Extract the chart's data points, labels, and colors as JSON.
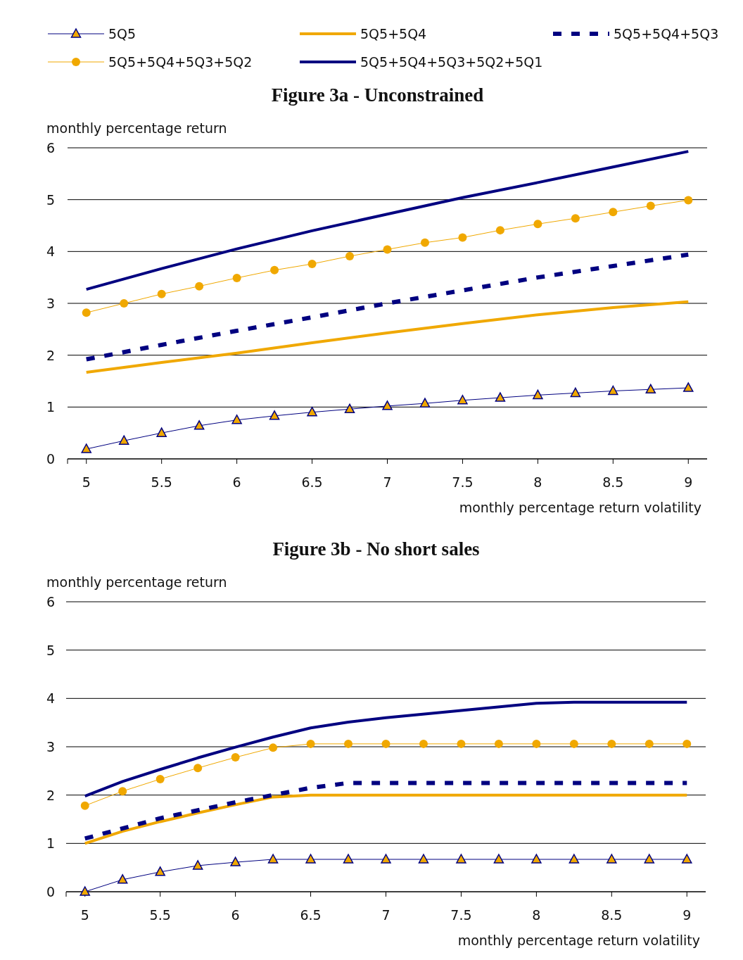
{
  "chart_data": [
    {
      "type": "line",
      "title": "Figure 3a - Unconstrained",
      "ylabel": "monthly percentage return",
      "xlabel": "monthly percentage return volatility",
      "xlim": [
        4.875,
        9.125
      ],
      "xticks": [
        5,
        5.5,
        6,
        6.5,
        7,
        7.5,
        8,
        8.5,
        9
      ],
      "ylim": [
        0,
        6
      ],
      "yticks": [
        0,
        1,
        2,
        3,
        4,
        5,
        6
      ],
      "grid": "y",
      "legend": "top",
      "series": [
        {
          "name": "5Q5",
          "color": "#000080",
          "marker": "triangle",
          "line_style": "solid",
          "x": [
            5,
            5.25,
            5.5,
            5.75,
            6,
            6.25,
            6.5,
            6.75,
            7,
            7.25,
            7.5,
            7.75,
            8,
            8.25,
            8.5,
            8.75,
            9
          ],
          "values": [
            0.19,
            0.35,
            0.5,
            0.64,
            0.75,
            0.83,
            0.9,
            0.96,
            1.02,
            1.07,
            1.13,
            1.18,
            1.23,
            1.27,
            1.31,
            1.34,
            1.37
          ]
        },
        {
          "name": "5Q5+5Q4",
          "color": "#f0a800",
          "marker": "none",
          "line_style": "solid",
          "x": [
            5,
            5.5,
            6,
            6.5,
            7,
            7.5,
            8,
            8.5,
            9
          ],
          "values": [
            1.67,
            1.86,
            2.04,
            2.24,
            2.43,
            2.61,
            2.78,
            2.92,
            3.03
          ]
        },
        {
          "name": "5Q5+5Q4+5Q3",
          "color": "#000080",
          "marker": "none",
          "line_style": "dashed",
          "x": [
            5,
            5.5,
            6,
            6.5,
            7,
            7.5,
            8,
            8.5,
            9
          ],
          "values": [
            1.92,
            2.2,
            2.47,
            2.73,
            3.0,
            3.25,
            3.5,
            3.72,
            3.94
          ]
        },
        {
          "name": "5Q5+5Q4+5Q3+5Q2",
          "color": "#f0a800",
          "marker": "circle",
          "line_style": "solid",
          "x": [
            5,
            5.25,
            5.5,
            5.75,
            6,
            6.25,
            6.5,
            6.75,
            7,
            7.25,
            7.5,
            7.75,
            8,
            8.25,
            8.5,
            8.75,
            9
          ],
          "values": [
            2.82,
            3.0,
            3.18,
            3.33,
            3.49,
            3.64,
            3.76,
            3.91,
            4.04,
            4.17,
            4.27,
            4.41,
            4.53,
            4.64,
            4.76,
            4.88,
            4.99
          ]
        },
        {
          "name": "5Q5+5Q4+5Q3+5Q2+5Q1",
          "color": "#000080",
          "marker": "none",
          "line_style": "solid",
          "x": [
            5,
            5.5,
            6,
            6.5,
            7,
            7.5,
            8,
            8.5,
            9
          ],
          "values": [
            3.27,
            3.67,
            4.05,
            4.4,
            4.72,
            5.04,
            5.33,
            5.63,
            5.93
          ]
        }
      ]
    },
    {
      "type": "line",
      "title": "Figure 3b - No short sales",
      "ylabel": "monthly percentage return",
      "xlabel": "monthly percentage return volatility",
      "xlim": [
        4.875,
        9.125
      ],
      "xticks": [
        5,
        5.5,
        6,
        6.5,
        7,
        7.5,
        8,
        8.5,
        9
      ],
      "ylim": [
        0,
        6
      ],
      "yticks": [
        0,
        1,
        2,
        3,
        4,
        5,
        6
      ],
      "grid": "y",
      "series": [
        {
          "color": "#000080",
          "marker": "triangle",
          "line_style": "solid",
          "x": [
            5,
            5.25,
            5.5,
            5.75,
            6,
            6.25,
            6.5,
            6.75,
            7,
            7.25,
            7.5,
            7.75,
            8,
            8.25,
            8.5,
            8.75,
            9
          ],
          "values": [
            0,
            0.25,
            0.41,
            0.54,
            0.61,
            0.67,
            0.67,
            0.67,
            0.67,
            0.67,
            0.67,
            0.67,
            0.67,
            0.67,
            0.67,
            0.67,
            0.67
          ]
        },
        {
          "color": "#f0a800",
          "marker": "none",
          "line_style": "solid",
          "x": [
            5,
            5.25,
            5.5,
            5.75,
            6,
            6.25,
            6.5,
            9
          ],
          "values": [
            1.0,
            1.25,
            1.45,
            1.63,
            1.8,
            1.96,
            2.0,
            2.0
          ]
        },
        {
          "color": "#000080",
          "marker": "none",
          "line_style": "dashed",
          "x": [
            5,
            5.5,
            6,
            6.25,
            6.5,
            6.75,
            9
          ],
          "values": [
            1.1,
            1.52,
            1.85,
            2.0,
            2.15,
            2.25,
            2.25
          ]
        },
        {
          "color": "#f0a800",
          "marker": "circle",
          "line_style": "solid",
          "x": [
            5,
            5.25,
            5.5,
            5.75,
            6,
            6.25,
            6.5,
            6.75,
            7,
            7.25,
            7.5,
            7.75,
            8,
            8.25,
            8.5,
            8.75,
            9
          ],
          "values": [
            1.78,
            2.08,
            2.33,
            2.56,
            2.78,
            2.98,
            3.06,
            3.06,
            3.06,
            3.06,
            3.06,
            3.06,
            3.06,
            3.06,
            3.06,
            3.06,
            3.06
          ]
        },
        {
          "color": "#000080",
          "marker": "none",
          "line_style": "solid",
          "x": [
            5,
            5.25,
            5.5,
            5.75,
            6,
            6.25,
            6.5,
            6.75,
            7,
            7.5,
            8,
            8.25,
            9
          ],
          "values": [
            1.98,
            2.28,
            2.53,
            2.77,
            2.99,
            3.2,
            3.39,
            3.51,
            3.6,
            3.75,
            3.9,
            3.92,
            3.92
          ]
        }
      ]
    }
  ]
}
